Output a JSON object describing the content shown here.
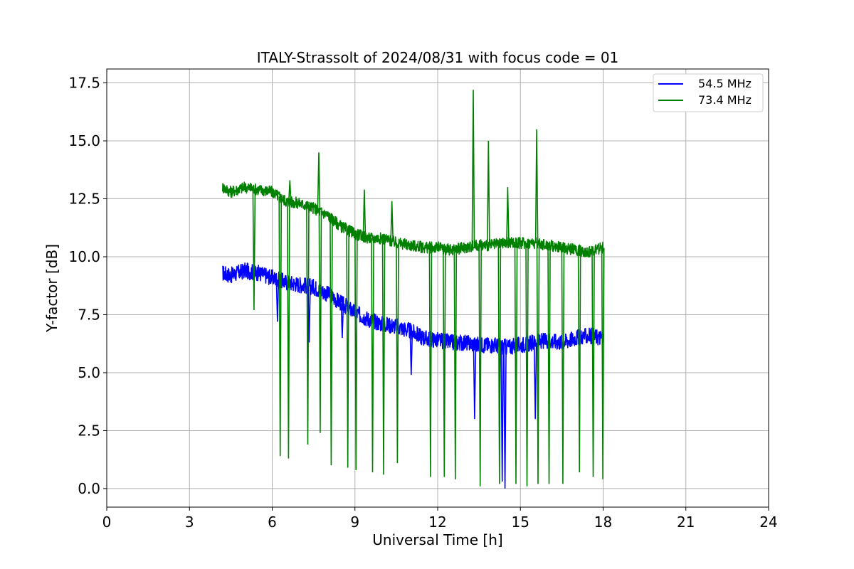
{
  "chart_data": {
    "type": "line",
    "title": "ITALY-Strassolt of 2024/08/31 with focus code = 01",
    "xlabel": "Universal Time [h]",
    "ylabel": "Y-factor [dB]",
    "xlim": [
      0,
      24
    ],
    "ylim": [
      -0.8,
      18.1
    ],
    "xticks": [
      0,
      3,
      6,
      9,
      12,
      15,
      18,
      21,
      24
    ],
    "xtick_labels": [
      "0",
      "3",
      "6",
      "9",
      "12",
      "15",
      "18",
      "21",
      "24"
    ],
    "yticks": [
      0,
      2.5,
      5,
      7.5,
      10,
      12.5,
      15,
      17.5
    ],
    "ytick_labels": [
      "0.0",
      "2.5",
      "5.0",
      "7.5",
      "10.0",
      "12.5",
      "15.0",
      "17.5"
    ],
    "grid": true,
    "legend_position": "top-right",
    "series": [
      {
        "name": "54.5 MHz",
        "color": "#0000ff",
        "x": [
          4.2,
          4.5,
          5.0,
          5.5,
          6.0,
          6.5,
          7.0,
          7.5,
          8.0,
          8.5,
          9.0,
          9.5,
          10.0,
          10.5,
          11.0,
          11.5,
          12.0,
          12.5,
          13.0,
          13.5,
          14.0,
          14.5,
          15.0,
          15.5,
          16.0,
          16.5,
          17.0,
          17.5,
          18.0
        ],
        "y": [
          9.3,
          9.2,
          9.4,
          9.3,
          9.1,
          8.9,
          8.8,
          8.7,
          8.4,
          8.0,
          7.6,
          7.3,
          7.1,
          7.0,
          6.8,
          6.5,
          6.4,
          6.3,
          6.3,
          6.2,
          6.2,
          6.1,
          6.2,
          6.3,
          6.4,
          6.3,
          6.5,
          6.6,
          6.5
        ]
      },
      {
        "name": "73.4 MHz",
        "color": "#008000",
        "x": [
          4.2,
          4.5,
          5.0,
          5.5,
          6.0,
          6.5,
          7.0,
          7.5,
          8.0,
          8.5,
          9.0,
          9.5,
          10.0,
          10.5,
          11.0,
          11.5,
          12.0,
          12.5,
          13.0,
          13.5,
          14.0,
          14.5,
          15.0,
          15.5,
          16.0,
          16.5,
          17.0,
          17.5,
          18.0
        ],
        "y": [
          13.0,
          12.8,
          13.0,
          12.9,
          12.8,
          12.4,
          12.3,
          12.1,
          11.8,
          11.3,
          11.0,
          10.8,
          10.8,
          10.6,
          10.5,
          10.4,
          10.4,
          10.3,
          10.4,
          10.5,
          10.5,
          10.6,
          10.6,
          10.6,
          10.5,
          10.4,
          10.3,
          10.2,
          10.4
        ]
      }
    ],
    "spikes": [
      {
        "series": 1,
        "x": 5.3,
        "y": 7.7
      },
      {
        "series": 1,
        "x": 6.25,
        "y": 1.4
      },
      {
        "series": 1,
        "x": 6.55,
        "y": 1.3
      },
      {
        "series": 1,
        "x": 6.6,
        "y": 13.3
      },
      {
        "series": 1,
        "x": 7.25,
        "y": 1.9
      },
      {
        "series": 1,
        "x": 7.65,
        "y": 14.5
      },
      {
        "series": 1,
        "x": 7.7,
        "y": 2.4
      },
      {
        "series": 1,
        "x": 8.1,
        "y": 1.0
      },
      {
        "series": 1,
        "x": 8.7,
        "y": 0.9
      },
      {
        "series": 1,
        "x": 9.0,
        "y": 0.8
      },
      {
        "series": 1,
        "x": 9.3,
        "y": 12.9
      },
      {
        "series": 1,
        "x": 9.6,
        "y": 0.7
      },
      {
        "series": 1,
        "x": 10.0,
        "y": 0.6
      },
      {
        "series": 1,
        "x": 10.3,
        "y": 12.4
      },
      {
        "series": 1,
        "x": 10.5,
        "y": 1.1
      },
      {
        "series": 1,
        "x": 11.7,
        "y": 0.5
      },
      {
        "series": 1,
        "x": 12.2,
        "y": 0.5
      },
      {
        "series": 1,
        "x": 12.6,
        "y": 0.4
      },
      {
        "series": 1,
        "x": 13.25,
        "y": 17.2
      },
      {
        "series": 1,
        "x": 13.5,
        "y": 0.1
      },
      {
        "series": 1,
        "x": 13.8,
        "y": 15.0
      },
      {
        "series": 1,
        "x": 14.2,
        "y": 0.2
      },
      {
        "series": 1,
        "x": 14.5,
        "y": 13.0
      },
      {
        "series": 1,
        "x": 14.8,
        "y": 0.2
      },
      {
        "series": 1,
        "x": 15.2,
        "y": 0.1
      },
      {
        "series": 1,
        "x": 15.55,
        "y": 15.5
      },
      {
        "series": 1,
        "x": 15.6,
        "y": 0.2
      },
      {
        "series": 1,
        "x": 16.0,
        "y": 0.2
      },
      {
        "series": 1,
        "x": 16.5,
        "y": 0.2
      },
      {
        "series": 1,
        "x": 17.1,
        "y": 0.7
      },
      {
        "series": 1,
        "x": 17.6,
        "y": 0.5
      },
      {
        "series": 1,
        "x": 17.95,
        "y": 0.4
      },
      {
        "series": 0,
        "x": 6.15,
        "y": 7.2
      },
      {
        "series": 0,
        "x": 7.3,
        "y": 6.3
      },
      {
        "series": 0,
        "x": 8.5,
        "y": 6.5
      },
      {
        "series": 0,
        "x": 11.0,
        "y": 4.9
      },
      {
        "series": 0,
        "x": 13.3,
        "y": 3.0
      },
      {
        "series": 0,
        "x": 14.3,
        "y": 0.3
      },
      {
        "series": 0,
        "x": 14.4,
        "y": 0.0
      },
      {
        "series": 0,
        "x": 15.5,
        "y": 3.0
      }
    ]
  }
}
